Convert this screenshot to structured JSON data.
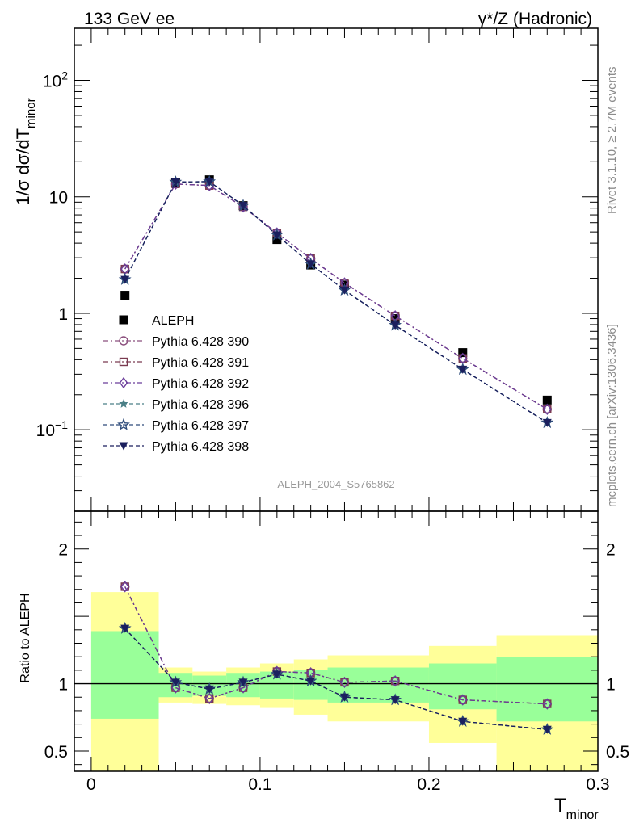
{
  "header": {
    "left": "133 GeV ee",
    "right": "γ*/Z (Hadronic)"
  },
  "side": {
    "rivet": "Rivet 3.1.10, ≥ 2.7M events",
    "mcplots": "mcplots.cern.ch [arXiv:1306.3436]"
  },
  "analysis_label": "ALEPH_2004_S5765862",
  "chart_data": [
    {
      "type": "scatter",
      "panel": "main",
      "ylabel": "1/σ  dσ/dT",
      "ylabel_sub": "minor",
      "yscale": "log",
      "ylim": [
        0.02,
        280
      ],
      "y_ticks": [
        {
          "v": 100,
          "base": "10",
          "exp": "2"
        },
        {
          "v": 10,
          "base": "10",
          "exp": ""
        },
        {
          "v": 1,
          "base": "1",
          "exp": ""
        },
        {
          "v": 0.1,
          "base": "10",
          "exp": "−1"
        }
      ],
      "legend_placement": "lower-left",
      "x": [
        0.02,
        0.05,
        0.07,
        0.09,
        0.11,
        0.13,
        0.15,
        0.18,
        0.22,
        0.27
      ],
      "series": [
        {
          "name": "ALEPH",
          "marker": "filled-square",
          "color": "#000000",
          "line": false,
          "values": [
            1.43,
            13.3,
            14.0,
            8.4,
            4.3,
            2.6,
            1.75,
            0.9,
            0.46,
            0.18
          ]
        },
        {
          "name": "Pythia 6.428 390",
          "marker": "open-circle",
          "color": "#8b4f7d",
          "line": true,
          "values": [
            2.4,
            12.9,
            12.5,
            8.2,
            4.9,
            2.95,
            1.82,
            0.95,
            0.41,
            0.15
          ]
        },
        {
          "name": "Pythia 6.428 391",
          "marker": "open-square",
          "color": "#7a3a50",
          "line": true,
          "values": [
            2.4,
            12.9,
            12.5,
            8.2,
            4.9,
            2.95,
            1.82,
            0.95,
            0.41,
            0.15
          ]
        },
        {
          "name": "Pythia 6.428 392",
          "marker": "open-diamond",
          "color": "#6a3d9a",
          "line": true,
          "values": [
            2.4,
            12.9,
            12.5,
            8.2,
            4.9,
            2.95,
            1.82,
            0.95,
            0.41,
            0.15
          ]
        },
        {
          "name": "Pythia 6.428 396",
          "marker": "filled-star",
          "color": "#4a7f86",
          "line": true,
          "values": [
            1.95,
            13.4,
            13.5,
            8.4,
            4.7,
            2.65,
            1.58,
            0.79,
            0.33,
            0.115
          ]
        },
        {
          "name": "Pythia 6.428 397",
          "marker": "open-star",
          "color": "#2d4b7a",
          "line": true,
          "values": [
            1.95,
            13.4,
            13.5,
            8.4,
            4.7,
            2.65,
            1.58,
            0.79,
            0.33,
            0.115
          ]
        },
        {
          "name": "Pythia 6.428 398",
          "marker": "filled-triangle-down",
          "color": "#1b1f5e",
          "line": true,
          "values": [
            1.95,
            13.4,
            13.5,
            8.4,
            4.7,
            2.65,
            1.58,
            0.79,
            0.33,
            0.115
          ]
        }
      ]
    },
    {
      "type": "line",
      "panel": "ratio",
      "ylabel": "Ratio to ALEPH",
      "xlabel": "T",
      "xlabel_sub": "minor",
      "xlim": [
        -0.01,
        0.3
      ],
      "ylim": [
        0.35,
        2.28
      ],
      "x_ticks": [
        {
          "v": 0,
          "label": "0"
        },
        {
          "v": 0.1,
          "label": "0.1"
        },
        {
          "v": 0.2,
          "label": "0.2"
        },
        {
          "v": 0.3,
          "label": "0.3"
        }
      ],
      "y_ticks": [
        {
          "v": 0.5,
          "label": "0.5"
        },
        {
          "v": 1,
          "label": "1"
        },
        {
          "v": 2,
          "label": "2"
        }
      ],
      "reference_line": 1,
      "bands": {
        "colors": {
          "outer": "#ffff99",
          "inner": "#99ff99"
        },
        "bins": [
          {
            "x0": 0.0,
            "x1": 0.04,
            "outer": [
              0.35,
              1.68
            ],
            "inner": [
              0.74,
              1.39
            ]
          },
          {
            "x0": 0.04,
            "x1": 0.06,
            "outer": [
              0.86,
              1.12
            ],
            "inner": [
              0.9,
              1.08
            ]
          },
          {
            "x0": 0.06,
            "x1": 0.08,
            "outer": [
              0.85,
              1.09
            ],
            "inner": [
              0.91,
              1.06
            ]
          },
          {
            "x0": 0.08,
            "x1": 0.1,
            "outer": [
              0.84,
              1.12
            ],
            "inner": [
              0.9,
              1.08
            ]
          },
          {
            "x0": 0.1,
            "x1": 0.12,
            "outer": [
              0.82,
              1.15
            ],
            "inner": [
              0.89,
              1.09
            ]
          },
          {
            "x0": 0.12,
            "x1": 0.14,
            "outer": [
              0.77,
              1.18
            ],
            "inner": [
              0.88,
              1.1
            ]
          },
          {
            "x0": 0.14,
            "x1": 0.2,
            "outer": [
              0.72,
              1.21
            ],
            "inner": [
              0.86,
              1.12
            ]
          },
          {
            "x0": 0.2,
            "x1": 0.24,
            "outer": [
              0.56,
              1.28
            ],
            "inner": [
              0.81,
              1.15
            ]
          },
          {
            "x0": 0.24,
            "x1": 0.3,
            "outer": [
              0.35,
              1.36
            ],
            "inner": [
              0.72,
              1.2
            ]
          }
        ]
      },
      "x": [
        0.02,
        0.05,
        0.07,
        0.09,
        0.11,
        0.13,
        0.15,
        0.18,
        0.22,
        0.27
      ],
      "series": [
        {
          "name": "Pythia 6.428 390",
          "marker": "open-circle",
          "color": "#8b4f7d",
          "values": [
            1.72,
            0.97,
            0.89,
            0.97,
            1.09,
            1.08,
            1.01,
            1.02,
            0.88,
            0.85
          ]
        },
        {
          "name": "Pythia 6.428 391",
          "marker": "open-square",
          "color": "#7a3a50",
          "values": [
            1.72,
            0.97,
            0.89,
            0.97,
            1.09,
            1.08,
            1.01,
            1.02,
            0.88,
            0.85
          ]
        },
        {
          "name": "Pythia 6.428 392",
          "marker": "open-diamond",
          "color": "#6a3d9a",
          "values": [
            1.72,
            0.97,
            0.89,
            0.97,
            1.09,
            1.08,
            1.01,
            1.02,
            0.88,
            0.85
          ]
        },
        {
          "name": "Pythia 6.428 396",
          "marker": "filled-star",
          "color": "#4a7f86",
          "values": [
            1.41,
            1.01,
            0.96,
            1.01,
            1.07,
            1.02,
            0.9,
            0.88,
            0.72,
            0.66
          ]
        },
        {
          "name": "Pythia 6.428 397",
          "marker": "open-star",
          "color": "#2d4b7a",
          "values": [
            1.41,
            1.01,
            0.96,
            1.01,
            1.07,
            1.02,
            0.9,
            0.88,
            0.72,
            0.66
          ]
        },
        {
          "name": "Pythia 6.428 398",
          "marker": "filled-triangle-down",
          "color": "#1b1f5e",
          "values": [
            1.41,
            1.01,
            0.96,
            1.01,
            1.07,
            1.02,
            0.9,
            0.88,
            0.72,
            0.66
          ]
        }
      ]
    }
  ]
}
